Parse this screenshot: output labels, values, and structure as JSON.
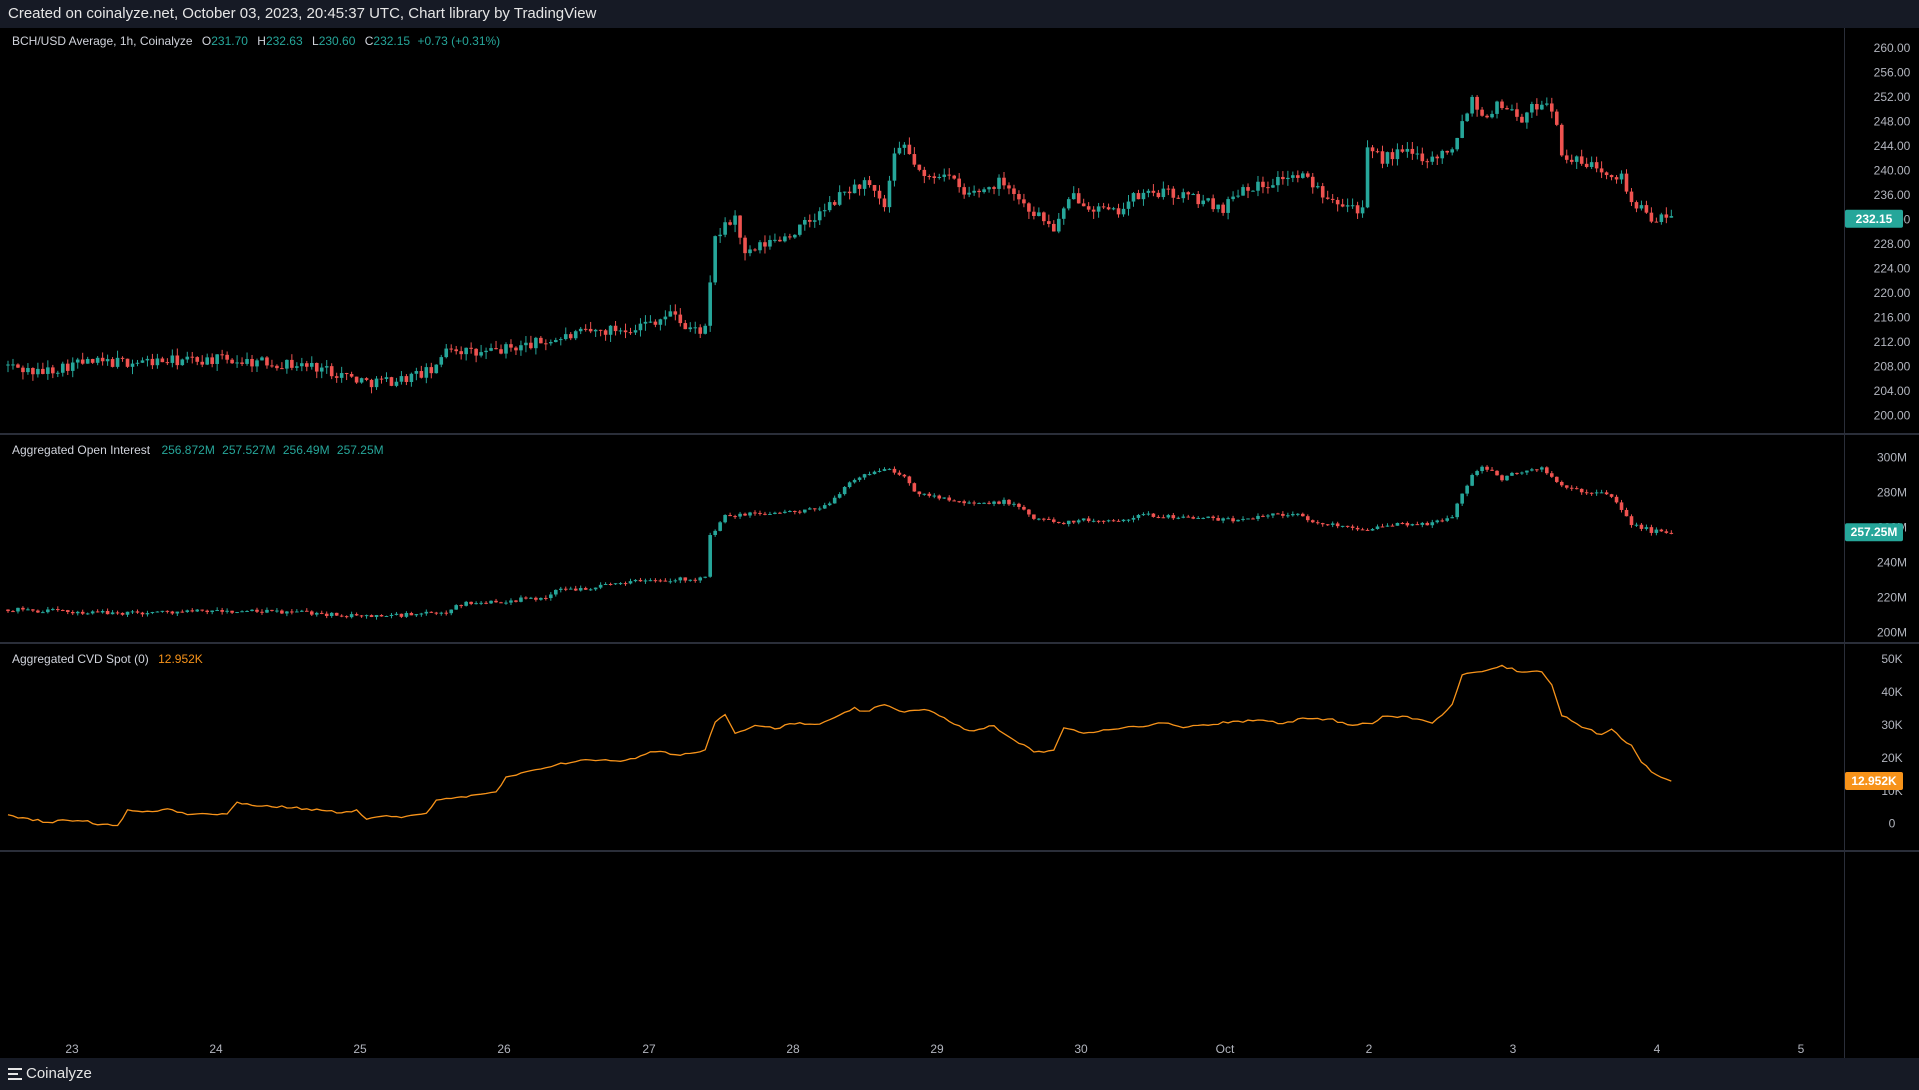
{
  "header": {
    "text": "Created on coinalyze.net, October 03, 2023, 20:45:37 UTC, Chart library by TradingView"
  },
  "footer": {
    "brand": "Coinalyze",
    "logo_icon": "coinalyze-logo-icon"
  },
  "colors": {
    "up": "#26a69a",
    "down": "#ef5350",
    "cvd": "#f7931a",
    "background": "#000000",
    "grid": "#2a2e39",
    "axis_text": "#b2b5be"
  },
  "x_axis": {
    "labels": [
      "23",
      "24",
      "25",
      "26",
      "27",
      "28",
      "29",
      "30",
      "Oct",
      "2",
      "3",
      "4",
      "5"
    ]
  },
  "price_pane": {
    "legend": {
      "title": "BCH/USD Average, 1h, Coinalyze",
      "o_label": "O",
      "o": "231.70",
      "h_label": "H",
      "h": "232.63",
      "l_label": "L",
      "l": "230.60",
      "c_label": "C",
      "c": "232.15",
      "change": "+0.73 (+0.31%)"
    },
    "y_ticks": [
      "200.00",
      "204.00",
      "208.00",
      "212.00",
      "216.00",
      "220.00",
      "224.00",
      "228.00",
      "232.00",
      "236.00",
      "240.00",
      "244.00",
      "248.00",
      "252.00",
      "256.00",
      "260.00"
    ],
    "last_label": "232.15"
  },
  "oi_pane": {
    "legend": {
      "title": "Aggregated Open Interest",
      "o": "256.872M",
      "h": "257.527M",
      "l": "256.49M",
      "c": "257.25M"
    },
    "y_ticks": [
      "200M",
      "220M",
      "240M",
      "260M",
      "280M",
      "300M"
    ],
    "last_label": "257.25M"
  },
  "cvd_pane": {
    "legend": {
      "title": "Aggregated CVD Spot (0)",
      "value": "12.952K"
    },
    "y_ticks": [
      "0",
      "10K",
      "20K",
      "30K",
      "40K",
      "50K"
    ],
    "last_label": "12.952K"
  },
  "chart_data": [
    {
      "type": "candlestick",
      "name": "BCH/USD Average, 1h, Coinalyze",
      "ylim": [
        197,
        262
      ],
      "x_start": "2023-09-22 19:00",
      "x_step_hours": 1,
      "anchors": [
        [
          0,
          208.2
        ],
        [
          6,
          207.0
        ],
        [
          14,
          208.6
        ],
        [
          28,
          208.8
        ],
        [
          42,
          209.2
        ],
        [
          55,
          208.5
        ],
        [
          62,
          208.0
        ],
        [
          68,
          206.5
        ],
        [
          72,
          205.5
        ],
        [
          78,
          205.8
        ],
        [
          86,
          207.5
        ],
        [
          88,
          211.5
        ],
        [
          94,
          210.0
        ],
        [
          104,
          211.5
        ],
        [
          116,
          213.5
        ],
        [
          126,
          214.5
        ],
        [
          134,
          216.8
        ],
        [
          136,
          214.2
        ],
        [
          140,
          214.0
        ],
        [
          141,
          221.0
        ],
        [
          142,
          229.0
        ],
        [
          146,
          232.5
        ],
        [
          148,
          226.0
        ],
        [
          152,
          228.0
        ],
        [
          158,
          230.0
        ],
        [
          164,
          233.5
        ],
        [
          168,
          236.5
        ],
        [
          172,
          238.0
        ],
        [
          176,
          234.0
        ],
        [
          178,
          242.0
        ],
        [
          180,
          244.0
        ],
        [
          184,
          238.5
        ],
        [
          188,
          240.0
        ],
        [
          192,
          236.0
        ],
        [
          196,
          237.0
        ],
        [
          200,
          238.5
        ],
        [
          204,
          234.5
        ],
        [
          208,
          232.0
        ],
        [
          210,
          230.5
        ],
        [
          214,
          236.0
        ],
        [
          218,
          234.0
        ],
        [
          222,
          233.0
        ],
        [
          226,
          235.5
        ],
        [
          230,
          236.5
        ],
        [
          236,
          236.0
        ],
        [
          240,
          235.0
        ],
        [
          244,
          234.0
        ],
        [
          248,
          237.5
        ],
        [
          252,
          237.5
        ],
        [
          256,
          239.0
        ],
        [
          260,
          239.0
        ],
        [
          264,
          236.5
        ],
        [
          268,
          235.0
        ],
        [
          272,
          233.5
        ],
        [
          273,
          243.0
        ],
        [
          276,
          242.0
        ],
        [
          280,
          243.0
        ],
        [
          286,
          242.0
        ],
        [
          290,
          244.0
        ],
        [
          294,
          252.0
        ],
        [
          296,
          249.0
        ],
        [
          300,
          251.0
        ],
        [
          304,
          248.5
        ],
        [
          308,
          251.5
        ],
        [
          310,
          250.5
        ],
        [
          312,
          243.0
        ],
        [
          316,
          241.0
        ],
        [
          320,
          240.5
        ],
        [
          324,
          239.0
        ],
        [
          326,
          235.0
        ],
        [
          328,
          233.5
        ],
        [
          331,
          232.0
        ],
        [
          334,
          232.2
        ]
      ]
    },
    {
      "type": "candlestick",
      "name": "Aggregated Open Interest",
      "ylim": [
        195,
        310
      ],
      "anchors": [
        [
          0,
          213.0
        ],
        [
          20,
          211.0
        ],
        [
          40,
          212.0
        ],
        [
          60,
          211.5
        ],
        [
          70,
          209.0
        ],
        [
          80,
          210.0
        ],
        [
          88,
          211.0
        ],
        [
          90,
          216.0
        ],
        [
          100,
          218.0
        ],
        [
          108,
          220.0
        ],
        [
          110,
          224.0
        ],
        [
          118,
          226.0
        ],
        [
          124,
          229.0
        ],
        [
          130,
          230.0
        ],
        [
          140,
          231.0
        ],
        [
          141,
          255.0
        ],
        [
          144,
          266.0
        ],
        [
          150,
          268.0
        ],
        [
          160,
          269.0
        ],
        [
          164,
          272.0
        ],
        [
          168,
          283.0
        ],
        [
          172,
          290.0
        ],
        [
          176,
          294.0
        ],
        [
          180,
          289.0
        ],
        [
          182,
          280.0
        ],
        [
          188,
          277.0
        ],
        [
          196,
          273.0
        ],
        [
          200,
          275.0
        ],
        [
          204,
          270.0
        ],
        [
          206,
          265.0
        ],
        [
          212,
          263.0
        ],
        [
          216,
          264.0
        ],
        [
          222,
          264.0
        ],
        [
          228,
          267.0
        ],
        [
          236,
          266.0
        ],
        [
          246,
          264.0
        ],
        [
          252,
          267.0
        ],
        [
          258,
          268.0
        ],
        [
          262,
          263.0
        ],
        [
          268,
          261.0
        ],
        [
          274,
          259.0
        ],
        [
          280,
          262.0
        ],
        [
          286,
          262.0
        ],
        [
          290,
          267.0
        ],
        [
          294,
          290.0
        ],
        [
          296,
          295.0
        ],
        [
          300,
          288.0
        ],
        [
          304,
          292.0
        ],
        [
          308,
          294.0
        ],
        [
          312,
          283.0
        ],
        [
          318,
          280.0
        ],
        [
          322,
          278.0
        ],
        [
          324,
          270.0
        ],
        [
          326,
          262.0
        ],
        [
          330,
          258.0
        ],
        [
          334,
          257.25
        ]
      ]
    },
    {
      "type": "line",
      "name": "Aggregated CVD Spot (0)",
      "ylim": [
        -8000,
        54000
      ],
      "anchors": [
        [
          0,
          2500
        ],
        [
          4,
          1500
        ],
        [
          8,
          500
        ],
        [
          14,
          1200
        ],
        [
          18,
          0
        ],
        [
          22,
          -500
        ],
        [
          24,
          4000
        ],
        [
          28,
          3500
        ],
        [
          32,
          4500
        ],
        [
          36,
          3000
        ],
        [
          40,
          3200
        ],
        [
          44,
          2800
        ],
        [
          46,
          6500
        ],
        [
          50,
          5500
        ],
        [
          56,
          5000
        ],
        [
          60,
          4500
        ],
        [
          66,
          3500
        ],
        [
          70,
          4000
        ],
        [
          72,
          1500
        ],
        [
          76,
          2200
        ],
        [
          80,
          2000
        ],
        [
          84,
          3000
        ],
        [
          86,
          7500
        ],
        [
          90,
          8000
        ],
        [
          94,
          8500
        ],
        [
          98,
          9500
        ],
        [
          100,
          14000
        ],
        [
          104,
          15500
        ],
        [
          110,
          18000
        ],
        [
          114,
          19000
        ],
        [
          120,
          19500
        ],
        [
          124,
          19000
        ],
        [
          130,
          22000
        ],
        [
          134,
          21000
        ],
        [
          138,
          21500
        ],
        [
          140,
          22500
        ],
        [
          142,
          31000
        ],
        [
          144,
          33500
        ],
        [
          146,
          27500
        ],
        [
          150,
          30000
        ],
        [
          154,
          29000
        ],
        [
          158,
          30500
        ],
        [
          162,
          30000
        ],
        [
          166,
          32000
        ],
        [
          170,
          35000
        ],
        [
          172,
          34000
        ],
        [
          176,
          36000
        ],
        [
          180,
          34000
        ],
        [
          184,
          35000
        ],
        [
          188,
          32000
        ],
        [
          190,
          30000
        ],
        [
          194,
          28000
        ],
        [
          198,
          30000
        ],
        [
          200,
          27000
        ],
        [
          204,
          24000
        ],
        [
          206,
          21500
        ],
        [
          210,
          22500
        ],
        [
          212,
          29000
        ],
        [
          216,
          27500
        ],
        [
          220,
          28500
        ],
        [
          226,
          29500
        ],
        [
          232,
          30500
        ],
        [
          236,
          29500
        ],
        [
          240,
          30000
        ],
        [
          246,
          31000
        ],
        [
          252,
          31500
        ],
        [
          256,
          30500
        ],
        [
          260,
          32000
        ],
        [
          266,
          31500
        ],
        [
          270,
          30000
        ],
        [
          274,
          30500
        ],
        [
          276,
          32500
        ],
        [
          280,
          32500
        ],
        [
          284,
          31500
        ],
        [
          286,
          30500
        ],
        [
          290,
          36000
        ],
        [
          292,
          45500
        ],
        [
          296,
          46500
        ],
        [
          300,
          48000
        ],
        [
          304,
          46000
        ],
        [
          308,
          46500
        ],
        [
          310,
          42000
        ],
        [
          312,
          33000
        ],
        [
          316,
          29500
        ],
        [
          320,
          27000
        ],
        [
          322,
          28500
        ],
        [
          326,
          23500
        ],
        [
          328,
          19000
        ],
        [
          330,
          15500
        ],
        [
          334,
          12952
        ]
      ]
    }
  ]
}
